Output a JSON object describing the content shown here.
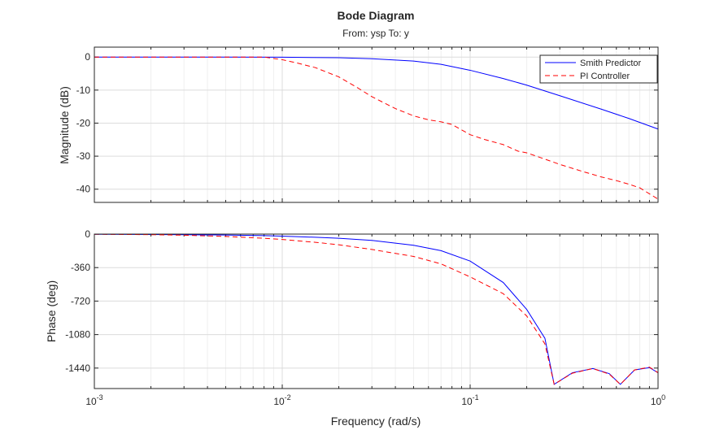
{
  "chart_data": {
    "type": "line",
    "title": "Bode Diagram",
    "subtitle": "From: ysp  To: y",
    "xlabel": "Frequency (rad/s)",
    "xscale": "log",
    "xlim": [
      0.001,
      1
    ],
    "xticks": [
      {
        "value": 0.001,
        "base": "10",
        "exp": "-3"
      },
      {
        "value": 0.01,
        "base": "10",
        "exp": "-2"
      },
      {
        "value": 0.1,
        "base": "10",
        "exp": "-1"
      },
      {
        "value": 1,
        "base": "10",
        "exp": "0"
      }
    ],
    "grid": true,
    "legend": {
      "placement": "top-right",
      "entries": [
        "Smith Predictor",
        "PI Controller"
      ]
    },
    "series_styles": [
      {
        "name": "Smith Predictor",
        "color": "#0000ff",
        "dash": "solid"
      },
      {
        "name": "PI Controller",
        "color": "#ff0000",
        "dash": "dashed"
      }
    ],
    "panels": [
      {
        "key": "magnitude",
        "ylabel": "Magnitude (dB)",
        "ylim": [
          -44,
          3
        ],
        "yticks": [
          0,
          -10,
          -20,
          -30,
          -40
        ],
        "ytick_labels": [
          "0",
          "-10",
          "-20",
          "-30",
          "-40"
        ],
        "series": [
          {
            "name": "Smith Predictor",
            "x": [
              0.001,
              0.002,
              0.005,
              0.01,
              0.02,
              0.03,
              0.05,
              0.07,
              0.1,
              0.15,
              0.2,
              0.3,
              0.5,
              0.7,
              1.0
            ],
            "y": [
              0,
              0,
              0,
              -0.05,
              -0.2,
              -0.5,
              -1.2,
              -2.2,
              -4.0,
              -6.5,
              -8.5,
              -11.7,
              -15.8,
              -18.6,
              -21.8
            ]
          },
          {
            "name": "PI Controller",
            "x": [
              0.001,
              0.002,
              0.005,
              0.008,
              0.01,
              0.012,
              0.015,
              0.02,
              0.025,
              0.03,
              0.04,
              0.05,
              0.06,
              0.07,
              0.08,
              0.1,
              0.12,
              0.15,
              0.18,
              0.2,
              0.25,
              0.3,
              0.4,
              0.5,
              0.6,
              0.7,
              0.8,
              1.0
            ],
            "y": [
              0,
              0,
              0,
              0,
              -0.8,
              -1.8,
              -3.2,
              -6.0,
              -9.2,
              -12.0,
              -15.6,
              -17.8,
              -19.0,
              -19.6,
              -20.4,
              -23.5,
              -25.0,
              -26.5,
              -28.5,
              -29.0,
              -30.9,
              -32.5,
              -34.7,
              -36.3,
              -37.4,
              -38.5,
              -39.6,
              -43.0
            ]
          }
        ]
      },
      {
        "key": "phase",
        "ylabel": "Phase (deg)",
        "ylim": [
          -1660,
          0
        ],
        "yticks": [
          0,
          -360,
          -720,
          -1080,
          -1440
        ],
        "ytick_labels": [
          "0",
          "-360",
          "-720",
          "-1080",
          "-1440"
        ],
        "series": [
          {
            "name": "Smith Predictor",
            "x": [
              0.001,
              0.002,
              0.003,
              0.005,
              0.008,
              0.01,
              0.015,
              0.02,
              0.03,
              0.05,
              0.07,
              0.1,
              0.15,
              0.2,
              0.25,
              0.28,
              0.35,
              0.45,
              0.55,
              0.63,
              0.75,
              0.9,
              1.0
            ],
            "y": [
              -2,
              -4,
              -6,
              -10,
              -16,
              -22,
              -34,
              -45,
              -68,
              -120,
              -178,
              -290,
              -520,
              -810,
              -1120,
              -1615,
              -1490,
              -1445,
              -1500,
              -1615,
              -1460,
              -1435,
              -1490
            ]
          },
          {
            "name": "PI Controller",
            "x": [
              0.001,
              0.002,
              0.003,
              0.005,
              0.008,
              0.01,
              0.015,
              0.02,
              0.03,
              0.05,
              0.07,
              0.1,
              0.15,
              0.2,
              0.25,
              0.28,
              0.35,
              0.45,
              0.55,
              0.63,
              0.75,
              0.9,
              1.0
            ],
            "y": [
              -2,
              -6,
              -12,
              -25,
              -45,
              -58,
              -88,
              -115,
              -165,
              -240,
              -320,
              -460,
              -640,
              -880,
              -1180,
              -1615,
              -1495,
              -1445,
              -1505,
              -1615,
              -1460,
              -1430,
              -1490
            ]
          }
        ]
      }
    ]
  }
}
